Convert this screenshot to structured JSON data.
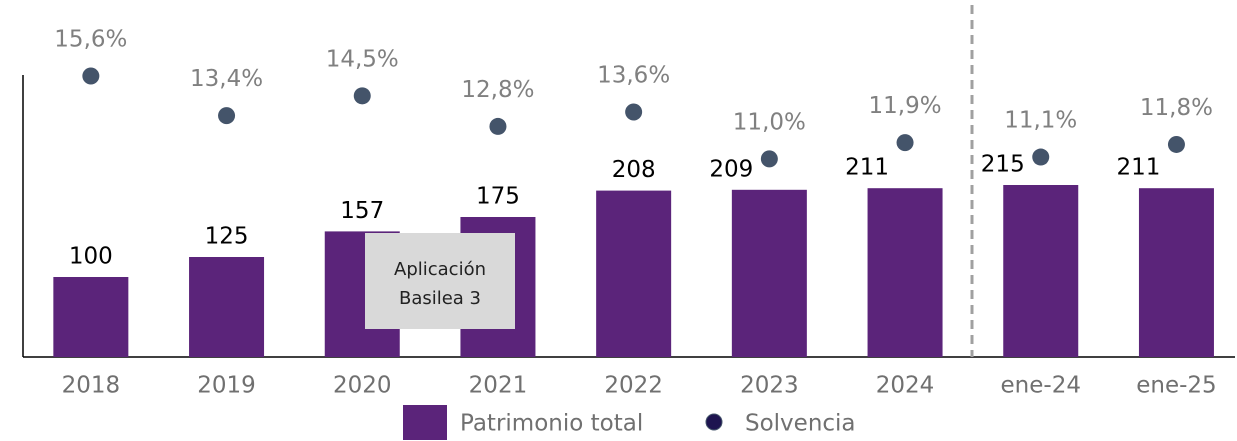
{
  "chart_data": {
    "type": "bar",
    "categories": [
      "2018",
      "2019",
      "2020",
      "2021",
      "2022",
      "2023",
      "2024",
      "ene-24",
      "ene-25"
    ],
    "series": [
      {
        "name": "Patrimonio total",
        "color": "#5b247a",
        "values": [
          100,
          125,
          157,
          175,
          208,
          209,
          211,
          215,
          211
        ]
      },
      {
        "name": "Solvencia",
        "color": "#44546a",
        "axis": "y2",
        "values": [
          15.6,
          13.4,
          14.5,
          12.8,
          13.6,
          11.0,
          11.9,
          11.1,
          11.8
        ],
        "value_labels": [
          "15,6%",
          "13,4%",
          "14,5%",
          "12,8%",
          "13,6%",
          "11,0%",
          "11,9%",
          "11,1%",
          "11,8%"
        ]
      }
    ],
    "annotations": [
      "Aplicación",
      "Basilea 3"
    ]
  }
}
